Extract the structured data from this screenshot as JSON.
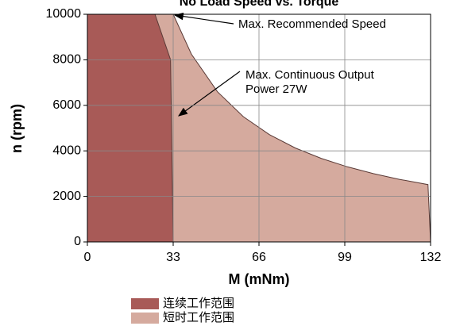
{
  "chart_data": {
    "type": "area",
    "title": "No Load Speed vs. Torque",
    "x_label": "M (mNm)",
    "y_label": "n (rpm)",
    "xlim": [
      0,
      132
    ],
    "xticks": [
      0,
      33,
      66,
      99,
      132
    ],
    "ylim": [
      0,
      10000
    ],
    "yticks": [
      0,
      2000,
      4000,
      6000,
      8000,
      10000
    ],
    "grid": true,
    "series": [
      {
        "name": "短时工作范围",
        "color": "#d5aa9e",
        "x": [
          0,
          0,
          33,
          40,
          50,
          60,
          70,
          80,
          90,
          100,
          110,
          120,
          131,
          132
        ],
        "values": [
          0,
          10000,
          10000,
          8250,
          6600,
          5500,
          4714,
          4125,
          3667,
          3300,
          3000,
          2750,
          2519,
          0
        ]
      },
      {
        "name": "连续工作范围",
        "color": "#a85a57",
        "x": [
          0,
          0,
          26,
          32,
          33
        ],
        "values": [
          0,
          10000,
          10000,
          8000,
          0
        ]
      }
    ],
    "annotations": [
      {
        "text": [
          "Max. Recommended Speed"
        ]
      },
      {
        "text": [
          "Max. Continuous Output",
          "Power 27W"
        ]
      }
    ]
  }
}
